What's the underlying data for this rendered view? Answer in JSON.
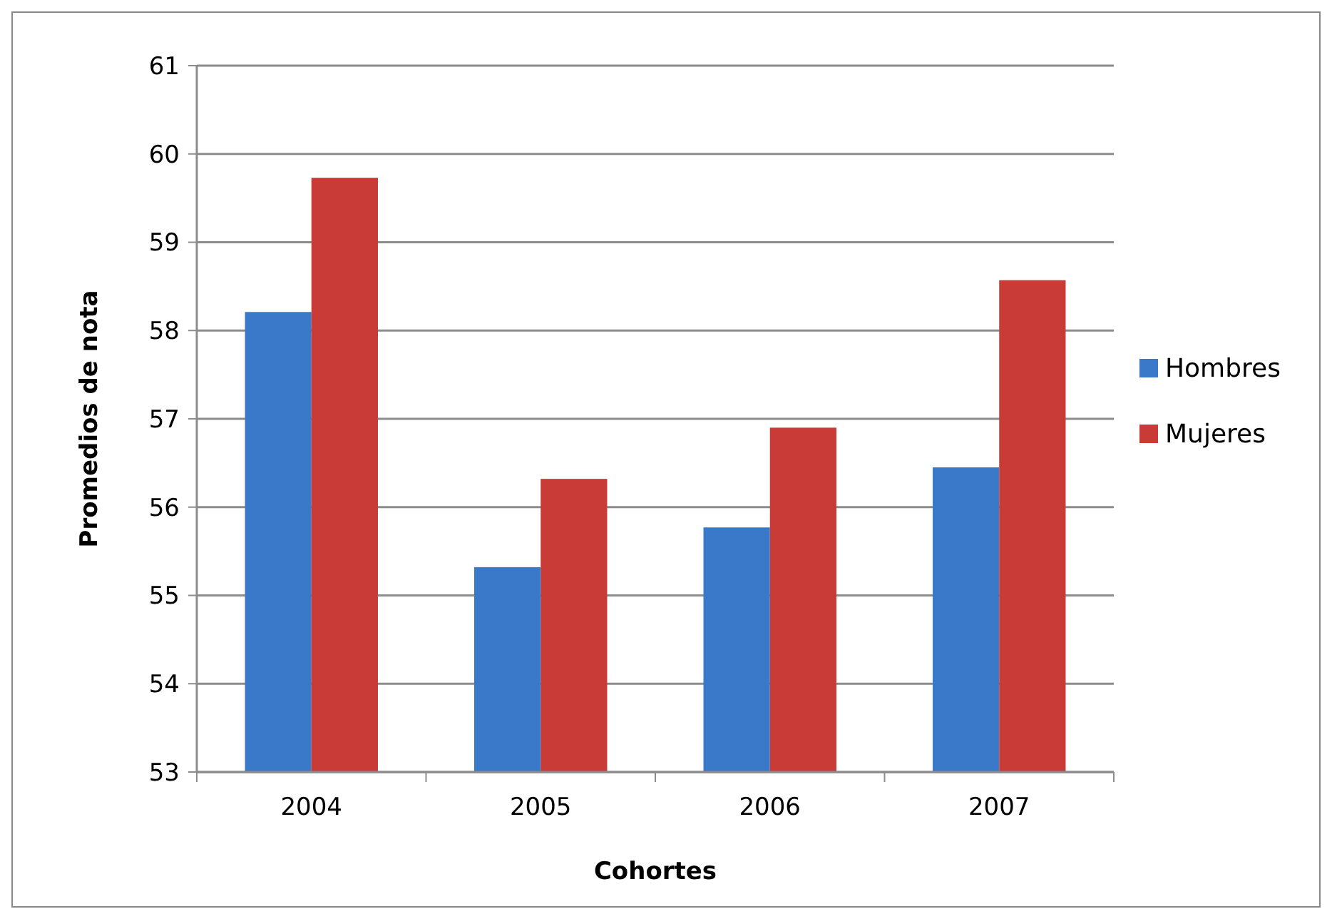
{
  "chart_data": {
    "type": "bar",
    "xlabel": "Cohortes",
    "ylabel": "Promedios de nota",
    "categories": [
      "2004",
      "2005",
      "2006",
      "2007"
    ],
    "series": [
      {
        "name": "Hombres",
        "color": "#3a78c9",
        "values": [
          58.21,
          55.32,
          55.77,
          56.45
        ]
      },
      {
        "name": "Mujeres",
        "color": "#c83b37",
        "values": [
          59.73,
          56.32,
          56.9,
          58.57
        ]
      }
    ],
    "ylim": [
      53,
      61
    ],
    "yticks": [
      53,
      54,
      55,
      56,
      57,
      58,
      59,
      60,
      61
    ],
    "grid": "y",
    "legend": "right"
  }
}
